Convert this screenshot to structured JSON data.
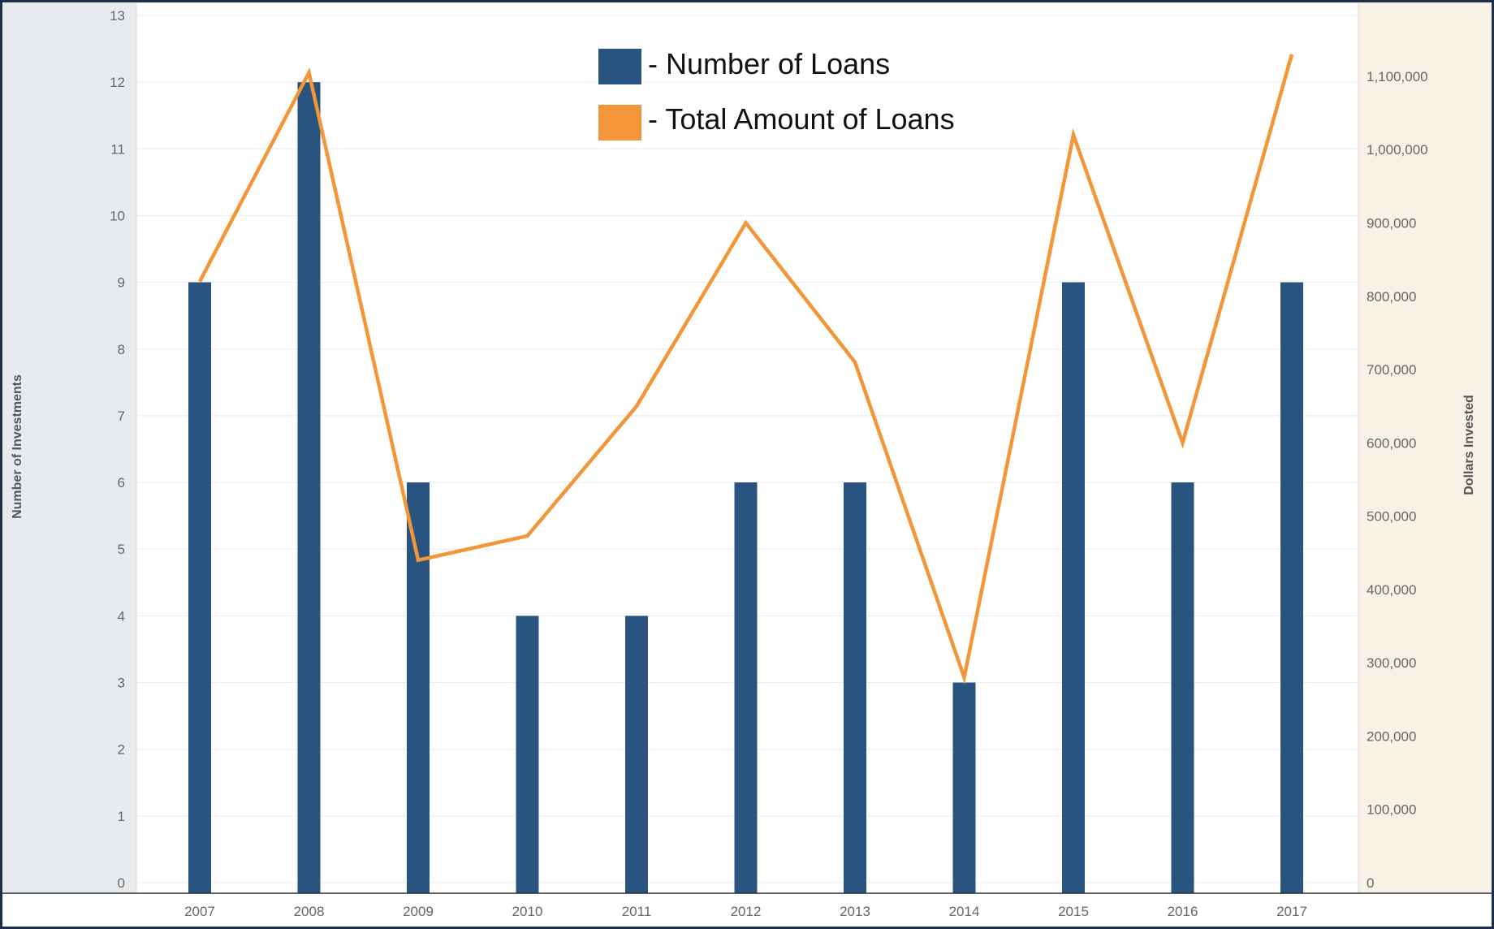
{
  "chart_data": {
    "type": "bar",
    "categories": [
      "2007",
      "2008",
      "2009",
      "2010",
      "2011",
      "2012",
      "2013",
      "2014",
      "2015",
      "2016",
      "2017"
    ],
    "series": [
      {
        "name": "- Number of Loans",
        "type": "bar",
        "axis": "left",
        "color": "#2a5480",
        "values": [
          9,
          12,
          6,
          4,
          4,
          6,
          6,
          3,
          9,
          6,
          9
        ]
      },
      {
        "name": "- Total Amount of Loans",
        "type": "line",
        "axis": "right",
        "color": "#f39639",
        "values": [
          820000,
          1105000,
          440000,
          473000,
          650000,
          900000,
          710000,
          280000,
          1020000,
          600000,
          1130000
        ]
      }
    ],
    "y_left": {
      "label": "Number of Investments",
      "lim": [
        0,
        13
      ],
      "ticks": [
        "0",
        "1",
        "2",
        "3",
        "4",
        "5",
        "6",
        "7",
        "8",
        "9",
        "10",
        "11",
        "12",
        "13"
      ]
    },
    "y_right": {
      "label": "Dollars Invested",
      "lim": [
        0,
        1183000
      ],
      "ticks": [
        "0",
        "100,000",
        "200,000",
        "300,000",
        "400,000",
        "500,000",
        "600,000",
        "700,000",
        "800,000",
        "900,000",
        "1,000,000",
        "1,100,000"
      ]
    },
    "legend_position": "top-center",
    "grid": true
  },
  "colors": {
    "left_panel": "#e8ebee",
    "right_panel": "#f7f2e5",
    "grid": "#ececec",
    "frame": "#1f2d4d"
  }
}
